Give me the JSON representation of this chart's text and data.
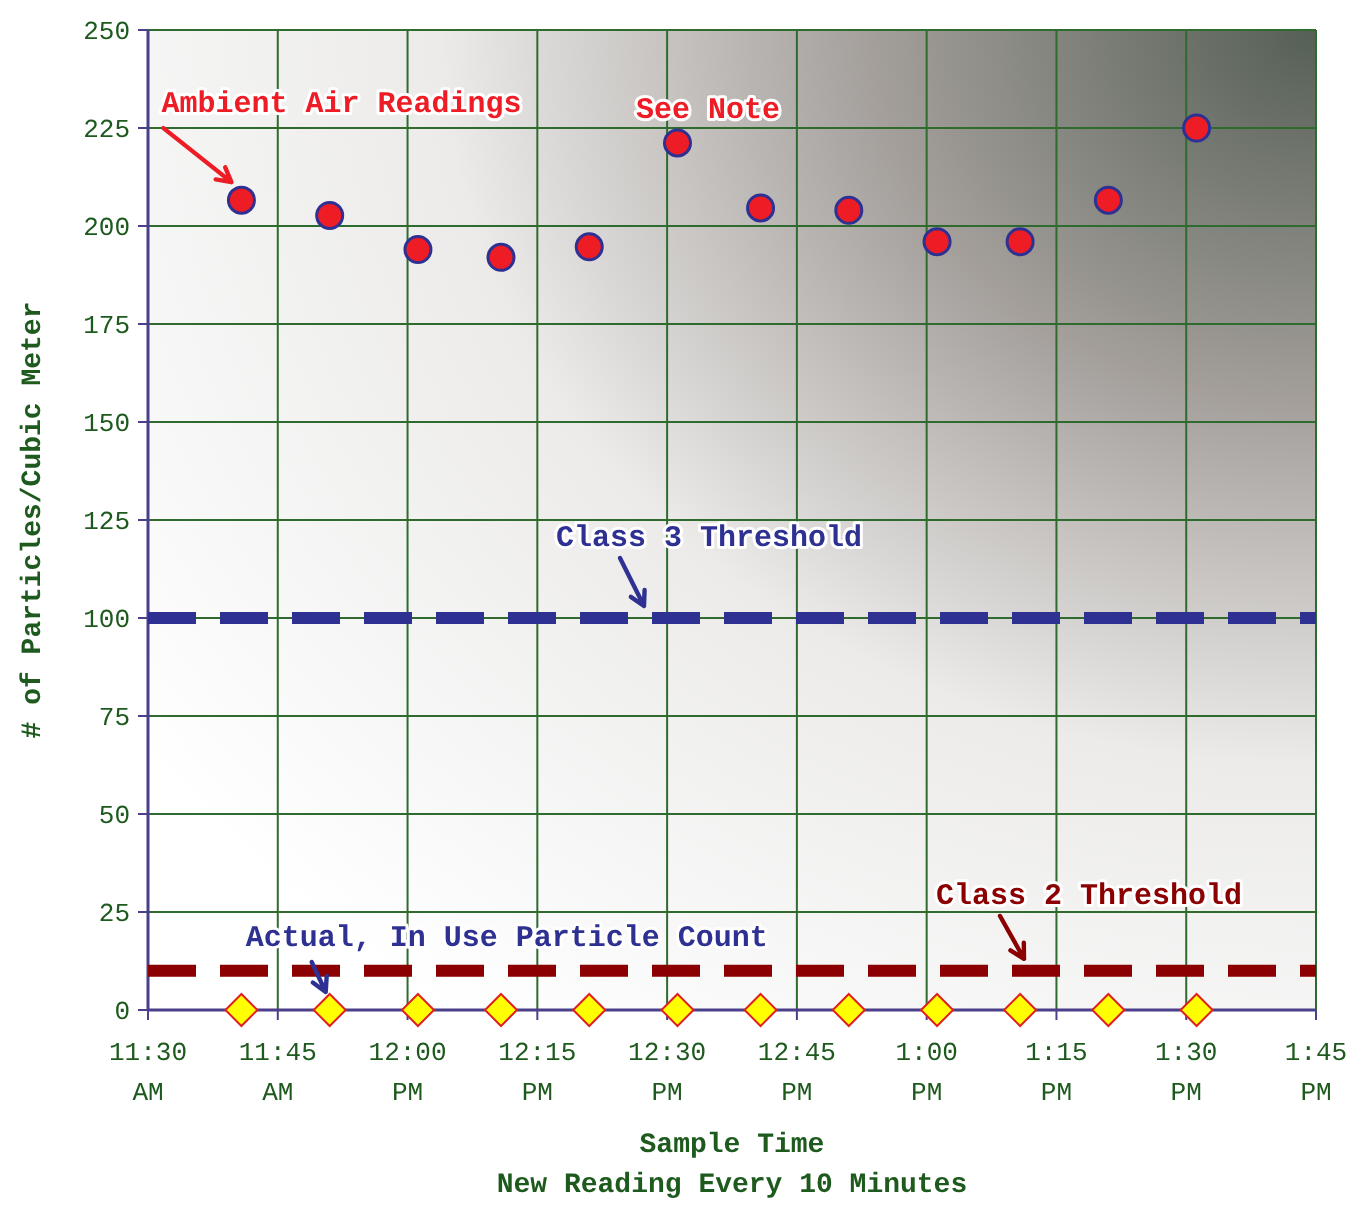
{
  "chart_data": {
    "type": "scatter",
    "xlabel": "Sample Time",
    "subtitle": "New Reading Every 10 Minutes",
    "ylabel": "# of Particles/Cubic Meter",
    "x": [
      11.68,
      11.85,
      12.02,
      12.18,
      12.35,
      12.52,
      12.68,
      12.85,
      13.02,
      13.18,
      13.35,
      13.52
    ],
    "series": [
      {
        "color": "#ee1c25",
        "marker": "circle",
        "values": [
          206.6,
          202.7,
          194,
          192,
          194.7,
          221.2,
          204.6,
          204,
          196,
          196,
          206.6,
          225
        ]
      },
      {
        "color": "#ffff00",
        "marker": "diamond",
        "values": [
          0,
          0,
          0,
          0,
          0,
          0,
          0,
          0,
          0,
          0,
          0,
          0
        ]
      }
    ],
    "xlim": [
      11.5,
      13.75
    ],
    "xticks": [
      {
        "value": 11.5,
        "label": "11:30 AM"
      },
      {
        "value": 11.75,
        "label": "11:45 AM"
      },
      {
        "value": 12,
        "label": "12:00 PM"
      },
      {
        "value": 12.25,
        "label": "12:15 PM"
      },
      {
        "value": 12.5,
        "label": "12:30 PM"
      },
      {
        "value": 12.75,
        "label": "12:45 PM"
      },
      {
        "value": 13,
        "label": "1:00 PM"
      },
      {
        "value": 13.25,
        "label": "1:15 PM"
      },
      {
        "value": 13.5,
        "label": "1:30 PM"
      },
      {
        "value": 13.75,
        "label": "1:45 PM"
      }
    ],
    "ylim": [
      0,
      250
    ],
    "yticks": [
      0,
      25,
      50,
      75,
      100,
      125,
      150,
      175,
      200,
      225,
      250
    ],
    "grid": true,
    "ref_lines": [
      {
        "axis": "y",
        "value": 100,
        "label": "Class 3 Threshold",
        "color": "#2e3192",
        "line_style": "dashed"
      },
      {
        "axis": "y",
        "value": 10,
        "label": "Class 2 Threshold",
        "color": "#8b0000",
        "line_style": "dashed"
      }
    ],
    "annotations": [
      {
        "text": "Ambient Air Readings",
        "x": 11.68,
        "y": 206.6
      },
      "See Note",
      {
        "text": "Actual, In Use Particle Count",
        "x": 11.85,
        "y": 0
      }
    ]
  }
}
